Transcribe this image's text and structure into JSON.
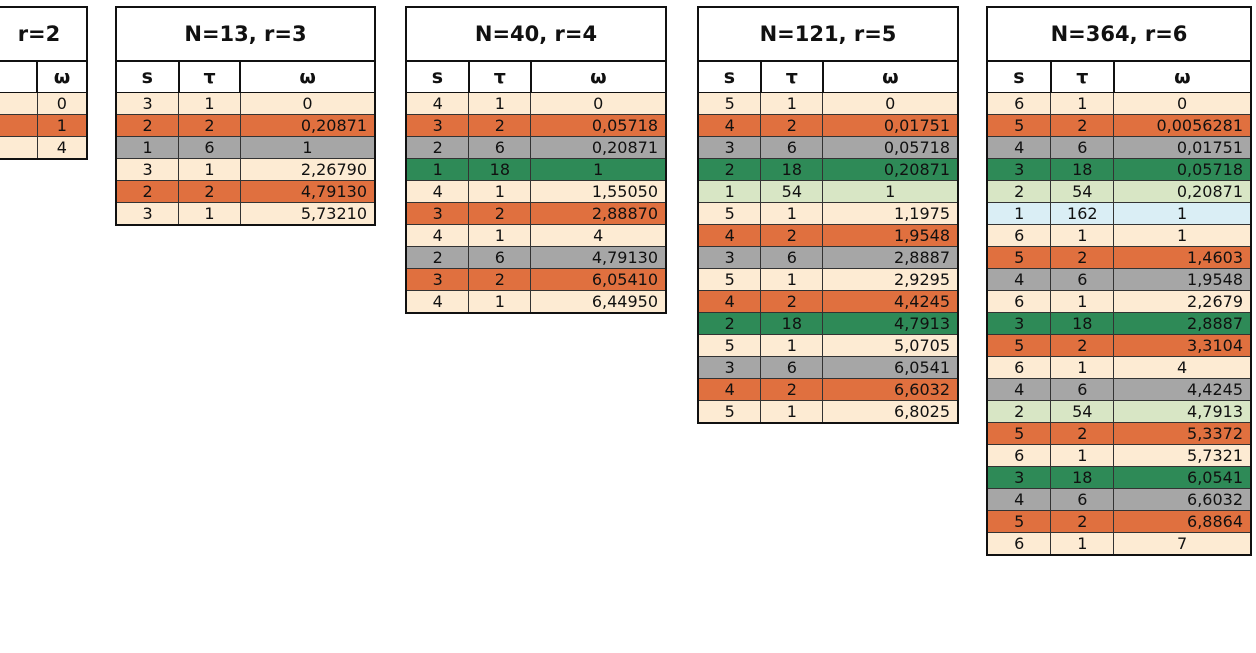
{
  "colors": {
    "c-cream": "#fdebd3",
    "c-orange": "#e0703f",
    "c-gray": "#a6a6a6",
    "c-green": "#2e8a57",
    "c-lgreen": "#d8e6c5",
    "c-lblue": "#daeef5"
  },
  "tables": [
    {
      "title": "r=2",
      "headers": [
        "",
        "ω"
      ],
      "rows": [
        [
          "",
          "0",
          "c-cream"
        ],
        [
          "",
          "1",
          "c-orange"
        ],
        [
          "",
          "4",
          "c-cream"
        ]
      ]
    },
    {
      "title": "N=13, r=3",
      "headers": [
        "s",
        "τ",
        "ω"
      ],
      "rows": [
        [
          "3",
          "1",
          "0",
          "c-cream"
        ],
        [
          "2",
          "2",
          "0,20871",
          "c-orange"
        ],
        [
          "1",
          "6",
          "1",
          "c-gray"
        ],
        [
          "3",
          "1",
          "2,26790",
          "c-cream"
        ],
        [
          "2",
          "2",
          "4,79130",
          "c-orange"
        ],
        [
          "3",
          "1",
          "5,73210",
          "c-cream"
        ]
      ]
    },
    {
      "title": "N=40, r=4",
      "headers": [
        "s",
        "τ",
        "ω"
      ],
      "rows": [
        [
          "4",
          "1",
          "0",
          "c-cream"
        ],
        [
          "3",
          "2",
          "0,05718",
          "c-orange"
        ],
        [
          "2",
          "6",
          "0,20871",
          "c-gray"
        ],
        [
          "1",
          "18",
          "1",
          "c-green"
        ],
        [
          "4",
          "1",
          "1,55050",
          "c-cream"
        ],
        [
          "3",
          "2",
          "2,88870",
          "c-orange"
        ],
        [
          "4",
          "1",
          "4",
          "c-cream"
        ],
        [
          "2",
          "6",
          "4,79130",
          "c-gray"
        ],
        [
          "3",
          "2",
          "6,05410",
          "c-orange"
        ],
        [
          "4",
          "1",
          "6,44950",
          "c-cream"
        ]
      ]
    },
    {
      "title": "N=121, r=5",
      "headers": [
        "s",
        "τ",
        "ω"
      ],
      "rows": [
        [
          "5",
          "1",
          "0",
          "c-cream"
        ],
        [
          "4",
          "2",
          "0,01751",
          "c-orange"
        ],
        [
          "3",
          "6",
          "0,05718",
          "c-gray"
        ],
        [
          "2",
          "18",
          "0,20871",
          "c-green"
        ],
        [
          "1",
          "54",
          "1",
          "c-lgreen"
        ],
        [
          "5",
          "1",
          "1,1975",
          "c-cream"
        ],
        [
          "4",
          "2",
          "1,9548",
          "c-orange"
        ],
        [
          "3",
          "6",
          "2,8887",
          "c-gray"
        ],
        [
          "5",
          "1",
          "2,9295",
          "c-cream"
        ],
        [
          "4",
          "2",
          "4,4245",
          "c-orange"
        ],
        [
          "2",
          "18",
          "4,7913",
          "c-green"
        ],
        [
          "5",
          "1",
          "5,0705",
          "c-cream"
        ],
        [
          "3",
          "6",
          "6,0541",
          "c-gray"
        ],
        [
          "4",
          "2",
          "6,6032",
          "c-orange"
        ],
        [
          "5",
          "1",
          "6,8025",
          "c-cream"
        ]
      ]
    },
    {
      "title": "N=364, r=6",
      "headers": [
        "s",
        "τ",
        "ω"
      ],
      "rows": [
        [
          "6",
          "1",
          "0",
          "c-cream"
        ],
        [
          "5",
          "2",
          "0,0056281",
          "c-orange"
        ],
        [
          "4",
          "6",
          "0,01751",
          "c-gray"
        ],
        [
          "3",
          "18",
          "0,05718",
          "c-green"
        ],
        [
          "2",
          "54",
          "0,20871",
          "c-lgreen"
        ],
        [
          "1",
          "162",
          "1",
          "c-lblue"
        ],
        [
          "6",
          "1",
          "1",
          "c-cream"
        ],
        [
          "5",
          "2",
          "1,4603",
          "c-orange"
        ],
        [
          "4",
          "6",
          "1,9548",
          "c-gray"
        ],
        [
          "6",
          "1",
          "2,2679",
          "c-cream"
        ],
        [
          "3",
          "18",
          "2,8887",
          "c-green"
        ],
        [
          "5",
          "2",
          "3,3104",
          "c-orange"
        ],
        [
          "6",
          "1",
          "4",
          "c-cream"
        ],
        [
          "4",
          "6",
          "4,4245",
          "c-gray"
        ],
        [
          "2",
          "54",
          "4,7913",
          "c-lgreen"
        ],
        [
          "5",
          "2",
          "5,3372",
          "c-orange"
        ],
        [
          "6",
          "1",
          "5,7321",
          "c-cream"
        ],
        [
          "3",
          "18",
          "6,0541",
          "c-green"
        ],
        [
          "4",
          "6",
          "6,6032",
          "c-gray"
        ],
        [
          "5",
          "2",
          "6,8864",
          "c-orange"
        ],
        [
          "6",
          "1",
          "7",
          "c-cream"
        ]
      ]
    }
  ]
}
